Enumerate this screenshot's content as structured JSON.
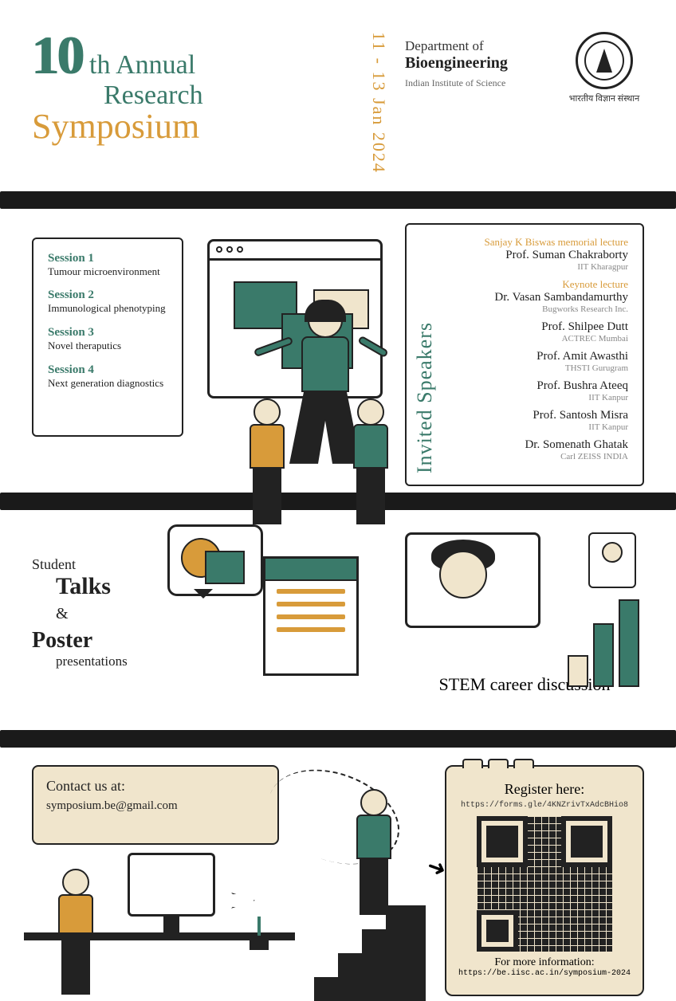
{
  "colors": {
    "teal": "#3a7a6a",
    "orange": "#d89b3a",
    "cream": "#f0e5cc",
    "black": "#1a1a1a",
    "grey": "#888888"
  },
  "header": {
    "big_number": "10",
    "th_annual": "th Annual",
    "research": "Research",
    "symposium": "Symposium",
    "date_vertical": "11 - 13 Jan 2024",
    "dept_of": "Department of",
    "dept_name": "Bioengineering",
    "institute": "Indian Institute of Science",
    "hindi": "भारतीय विज्ञान संस्थान"
  },
  "sessions": [
    {
      "h": "Session 1",
      "t": "Tumour microenvironment"
    },
    {
      "h": "Session 2",
      "t": "Immunological phenotyping"
    },
    {
      "h": "Session 3",
      "t": "Novel theraputics"
    },
    {
      "h": "Session 4",
      "t": "Next generation diagnostics"
    }
  ],
  "speakers": {
    "label": "Invited Speakers",
    "list": [
      {
        "sub": "Sanjay K Biswas memorial lecture",
        "name": "Prof. Suman Chakraborty",
        "aff": "IIT Kharagpur"
      },
      {
        "sub": "Keynote lecture",
        "name": "Dr. Vasan Sambandamurthy",
        "aff": "Bugworks Research Inc."
      },
      {
        "sub": "",
        "name": "Prof. Shilpee Dutt",
        "aff": "ACTREC Mumbai"
      },
      {
        "sub": "",
        "name": "Prof. Amit Awasthi",
        "aff": "THSTI Gurugram"
      },
      {
        "sub": "",
        "name": "Prof. Bushra Ateeq",
        "aff": "IIT Kanpur"
      },
      {
        "sub": "",
        "name": "Prof. Santosh Misra",
        "aff": "IIT Kanpur"
      },
      {
        "sub": "",
        "name": "Dr. Somenath Ghatak",
        "aff": "Carl ZEISS INDIA"
      }
    ]
  },
  "mid": {
    "student": "Student",
    "talks": "Talks",
    "amp": "&",
    "poster": "Poster",
    "presentations": "presentations",
    "stem": "STEM career discussion"
  },
  "contact": {
    "heading": "Contact us at:",
    "email": "symposium.be@gmail.com"
  },
  "register": {
    "heading": "Register here:",
    "url": "https://forms.gle/4KNZrivTxAdcBHio8",
    "info_heading": "For more information:",
    "info_url": "https://be.iisc.ac.in/symposium-2024"
  }
}
